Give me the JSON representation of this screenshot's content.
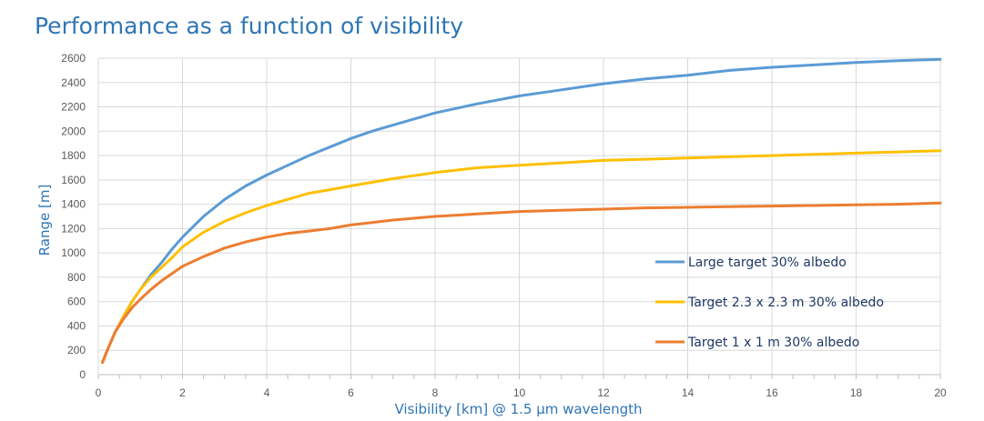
{
  "chart_data": {
    "type": "line",
    "title": "Performance as a function of visibility",
    "xlabel": "Visibility [km] @ 1.5 µm wavelength",
    "ylabel": "Range [m]",
    "xlim": [
      0,
      20
    ],
    "ylim": [
      0,
      2600
    ],
    "x_ticks": [
      "0",
      "2",
      "4",
      "6",
      "8",
      "10",
      "12",
      "14",
      "16",
      "18",
      "20"
    ],
    "y_ticks": [
      "0",
      "200",
      "400",
      "600",
      "800",
      "1000",
      "1200",
      "1400",
      "1600",
      "1800",
      "2000",
      "2200",
      "2400",
      "2600"
    ],
    "grid": true,
    "legend_position": "right",
    "series": [
      {
        "name": "Large target 30% albedo",
        "color": "#5b9bd5",
        "x": [
          0.1,
          0.2,
          0.4,
          0.6,
          0.8,
          1.0,
          1.25,
          1.5,
          1.75,
          2,
          2.5,
          3,
          3.5,
          4,
          4.5,
          5,
          5.5,
          6,
          6.5,
          7,
          8,
          9,
          10,
          11,
          12,
          13,
          14,
          15,
          16,
          17,
          18,
          19,
          20
        ],
        "y": [
          100,
          190,
          350,
          480,
          600,
          700,
          820,
          920,
          1030,
          1130,
          1300,
          1440,
          1550,
          1640,
          1720,
          1800,
          1870,
          1940,
          2000,
          2050,
          2150,
          2225,
          2290,
          2340,
          2390,
          2430,
          2460,
          2500,
          2525,
          2545,
          2565,
          2580,
          2590
        ]
      },
      {
        "name": "Target 2.3 x 2.3 m 30% albedo",
        "color": "#ffc000",
        "x": [
          0.1,
          0.2,
          0.4,
          0.6,
          0.8,
          1.0,
          1.25,
          1.5,
          1.75,
          2,
          2.5,
          3,
          3.5,
          4,
          4.5,
          5,
          5.5,
          6,
          6.5,
          7,
          8,
          9,
          10,
          11,
          12,
          13,
          14,
          15,
          16,
          17,
          18,
          19,
          20
        ],
        "y": [
          100,
          190,
          350,
          480,
          600,
          700,
          800,
          880,
          960,
          1050,
          1170,
          1260,
          1330,
          1390,
          1440,
          1490,
          1520,
          1550,
          1580,
          1610,
          1660,
          1700,
          1720,
          1740,
          1760,
          1770,
          1780,
          1790,
          1800,
          1810,
          1820,
          1830,
          1840
        ]
      },
      {
        "name": "Target 1 x 1 m 30% albedo",
        "color": "#ed7d31",
        "x": [
          0.1,
          0.2,
          0.4,
          0.6,
          0.8,
          1.0,
          1.25,
          1.5,
          1.75,
          2,
          2.5,
          3,
          3.5,
          4,
          4.5,
          5,
          5.5,
          6,
          6.5,
          7,
          8,
          9,
          10,
          11,
          12,
          13,
          14,
          15,
          16,
          17,
          18,
          19,
          20
        ],
        "y": [
          100,
          190,
          350,
          460,
          550,
          620,
          700,
          770,
          830,
          890,
          970,
          1040,
          1090,
          1130,
          1160,
          1180,
          1200,
          1230,
          1250,
          1270,
          1300,
          1320,
          1340,
          1350,
          1360,
          1370,
          1375,
          1380,
          1385,
          1390,
          1395,
          1400,
          1410
        ]
      }
    ]
  }
}
